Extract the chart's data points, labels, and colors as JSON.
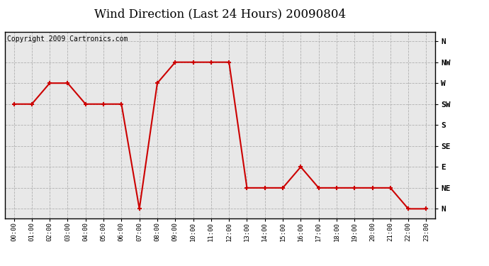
{
  "title": "Wind Direction (Last 24 Hours) 20090804",
  "copyright": "Copyright 2009 Cartronics.com",
  "hours": [
    "00:00",
    "01:00",
    "02:00",
    "03:00",
    "04:00",
    "05:00",
    "06:00",
    "07:00",
    "08:00",
    "09:00",
    "10:00",
    "11:00",
    "12:00",
    "13:00",
    "14:00",
    "15:00",
    "16:00",
    "17:00",
    "18:00",
    "19:00",
    "20:00",
    "21:00",
    "22:00",
    "23:00"
  ],
  "x_values": [
    0,
    1,
    2,
    3,
    4,
    5,
    6,
    7,
    8,
    9,
    10,
    11,
    12,
    13,
    14,
    15,
    16,
    17,
    18,
    19,
    20,
    21,
    22,
    23
  ],
  "y_values": [
    225,
    225,
    270,
    270,
    225,
    225,
    225,
    0,
    270,
    315,
    315,
    315,
    315,
    45,
    45,
    45,
    90,
    45,
    45,
    45,
    45,
    45,
    0,
    0
  ],
  "ytick_values": [
    0,
    45,
    90,
    135,
    180,
    225,
    270,
    315,
    360
  ],
  "ytick_labels": [
    "N",
    "NE",
    "E",
    "SE",
    "S",
    "SW",
    "W",
    "NW",
    "N"
  ],
  "line_color": "#cc0000",
  "background_color": "#e8e8e8",
  "grid_color": "#b0b0b0",
  "title_fontsize": 12,
  "copyright_fontsize": 7
}
